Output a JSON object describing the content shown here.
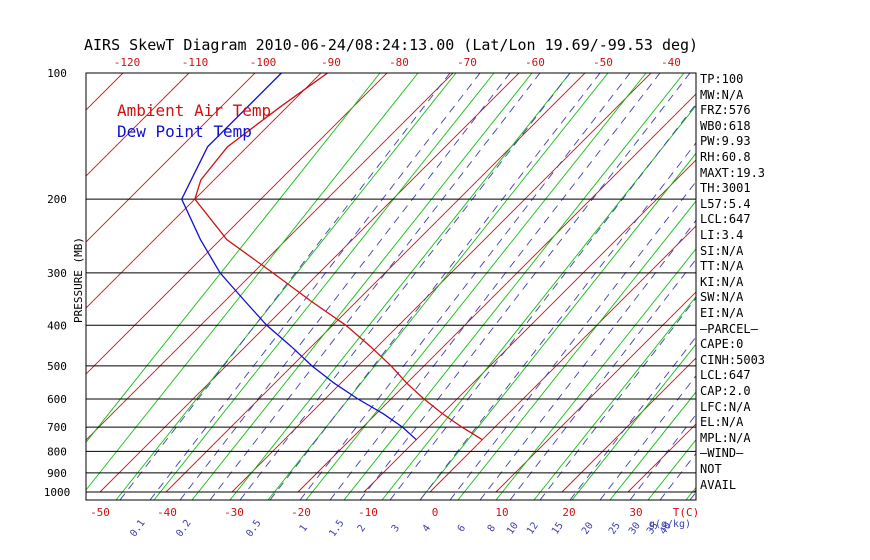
{
  "title": "AIRS SkewT Diagram 2010-06-24/08:24:13.00 (Lat/Lon 19.69/-99.53 deg)",
  "legend": [
    {
      "label": "Ambient Air Temp",
      "color": "#d01010"
    },
    {
      "label": "Dew Point Temp",
      "color": "#1010d0"
    }
  ],
  "colors": {
    "temp": "#d01010",
    "dew": "#1010d0",
    "dry_adiabat": "#d01010",
    "moist_adiabat": "#10c010",
    "mixing_ratio": "#4040b0",
    "isobar": "#000000",
    "tick_text": "#d01010",
    "mr_text": "#4040b0"
  },
  "side_panel": [
    "TP:100",
    "MW:N/A",
    "FRZ:576",
    "WB0:618",
    "PW:9.93",
    "RH:60.8",
    "MAXT:19.3",
    "TH:3001",
    "L57:5.4",
    "LCL:647",
    "LI:3.4",
    "SI:N/A",
    "TT:N/A",
    "KI:N/A",
    "SW:N/A",
    "EI:N/A",
    "—PARCEL—",
    "CAPE:0",
    "CINH:5003",
    "LCL:647",
    "CAP:2.0",
    "LFC:N/A",
    "EL:N/A",
    "MPL:N/A",
    "—WIND—",
    "NOT",
    "AVAIL"
  ],
  "chart_data": {
    "type": "line",
    "ylabel": "PRESSURE (MB)",
    "xlabel": "T(C)",
    "mixing_ratio_unit": "g(g/kg)",
    "pressure_ticks": [
      100,
      200,
      300,
      400,
      500,
      600,
      700,
      800,
      900,
      1000
    ],
    "top_temp_ticks": [
      -120,
      -110,
      -100,
      -90,
      -80,
      -70,
      -60,
      -50,
      -40
    ],
    "bottom_temp_ticks": [
      -50,
      -40,
      -30,
      -20,
      -10,
      0,
      10,
      20,
      30
    ],
    "mixing_ratio_ticks": [
      "0.1",
      "0.2",
      "0.5",
      "1",
      "1.5",
      "2",
      "3",
      "4",
      "6",
      "8",
      "10",
      "12",
      "15",
      "20",
      "25",
      "30",
      "35",
      "40"
    ],
    "series": [
      {
        "name": "Ambient Air Temp",
        "points": [
          [
            100,
            -79
          ],
          [
            120,
            -81
          ],
          [
            150,
            -83
          ],
          [
            180,
            -82
          ],
          [
            200,
            -80
          ],
          [
            250,
            -69
          ],
          [
            300,
            -57
          ],
          [
            350,
            -47
          ],
          [
            400,
            -38
          ],
          [
            450,
            -31
          ],
          [
            500,
            -25
          ],
          [
            550,
            -20
          ],
          [
            600,
            -15
          ],
          [
            650,
            -10
          ],
          [
            700,
            -5
          ],
          [
            750,
            0
          ]
        ]
      },
      {
        "name": "Dew Point Temp",
        "points": [
          [
            100,
            -86
          ],
          [
            150,
            -86
          ],
          [
            200,
            -82
          ],
          [
            250,
            -73
          ],
          [
            300,
            -65
          ],
          [
            350,
            -57
          ],
          [
            400,
            -50
          ],
          [
            450,
            -43
          ],
          [
            500,
            -37
          ],
          [
            550,
            -31
          ],
          [
            600,
            -25
          ],
          [
            650,
            -19
          ],
          [
            700,
            -14
          ],
          [
            750,
            -10
          ]
        ]
      }
    ]
  }
}
